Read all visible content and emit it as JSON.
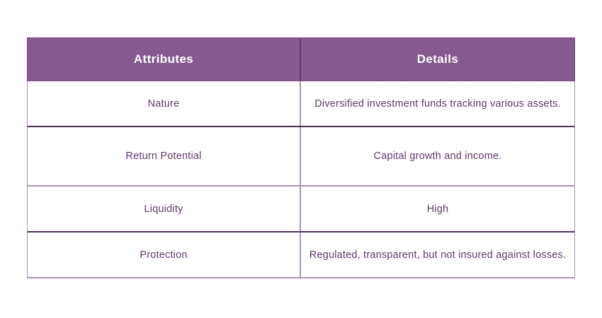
{
  "chart_data": {
    "type": "table",
    "columns": [
      "Attributes",
      "Details"
    ],
    "rows": [
      [
        "Nature",
        "Diversified investment funds tracking various assets."
      ],
      [
        "Return Potential",
        "Capital growth and income."
      ],
      [
        "Liquidity",
        "High"
      ],
      [
        "Protection",
        "Regulated, transparent, but not insured against losses."
      ]
    ],
    "title": "",
    "layout": {
      "column_split": "50/50",
      "grid": "on",
      "header_position": "top"
    }
  },
  "colors": {
    "page_background": "#FFFFFF",
    "header_background": "#865A90",
    "header_text": "#FFFFFF",
    "body_text": "#5E3A6B",
    "border_light": "#AC92B6",
    "border_dark": "#4C3156",
    "header_divider": "#5E3A68"
  }
}
